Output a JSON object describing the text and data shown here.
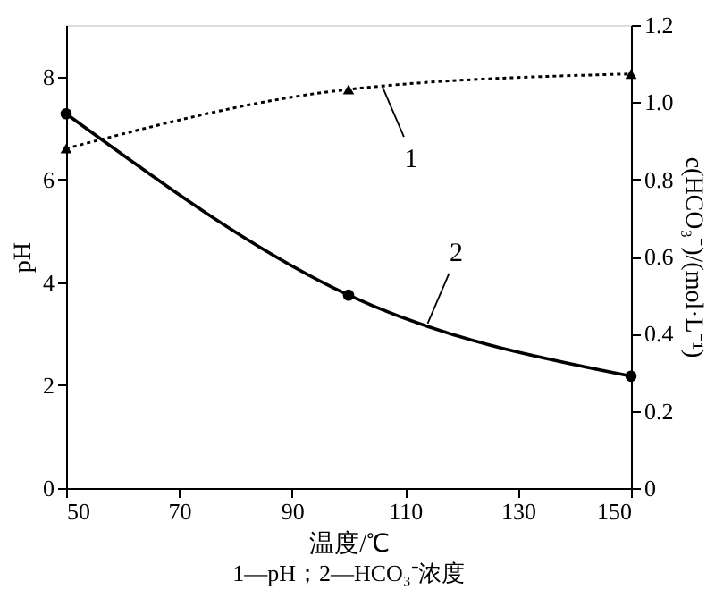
{
  "chart_data": {
    "type": "line",
    "xlabel": "温度/℃",
    "ylabel": "pH",
    "y2label": "c(HCO₃⁻)/(mol·L⁻¹)",
    "xlim": [
      50,
      150
    ],
    "xticks": [
      50,
      70,
      90,
      110,
      130,
      150
    ],
    "ylim": [
      0,
      9
    ],
    "yticks": [
      0,
      2,
      4,
      6,
      8
    ],
    "y2lim": [
      0,
      1.2
    ],
    "y2ticks": [
      {
        "value": 0,
        "label": "0"
      },
      {
        "value": 0.2,
        "label": "0.2"
      },
      {
        "value": 0.4,
        "label": "0.4"
      },
      {
        "value": 0.6,
        "label": "0.6"
      },
      {
        "value": 0.8,
        "label": "0.8"
      },
      {
        "value": 1.0,
        "label": "1.0"
      },
      {
        "value": 1.2,
        "label": "1.2"
      }
    ],
    "grid": false,
    "series": [
      {
        "color": "#000000",
        "x": [
          50,
          100,
          150
        ],
        "values": [
          6.6,
          7.75,
          8.05
        ],
        "marker": "triangle",
        "line_style": "dotted"
      },
      {
        "color": "#000000",
        "x": [
          50,
          100,
          150
        ],
        "values": [
          0.97,
          0.5,
          0.29
        ],
        "marker": "circle",
        "line_style": "solid",
        "axis": "y2"
      }
    ],
    "annotations": [
      {
        "text": "1",
        "x": 106,
        "y": 7.8
      },
      {
        "text": "2",
        "x": 114,
        "y": 3.2
      },
      "1—pH；2—HCO₃⁻浓度"
    ]
  }
}
